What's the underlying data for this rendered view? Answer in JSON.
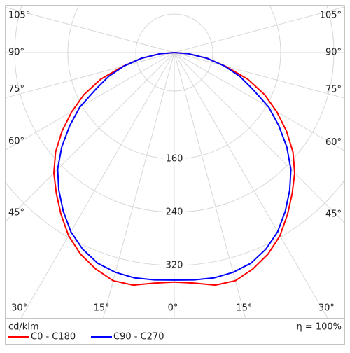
{
  "chart_data": {
    "type": "polar",
    "unit": "cd/klm",
    "efficiency": "η = 100%",
    "angles": [
      0,
      5,
      10,
      15,
      20,
      25,
      30,
      35,
      40,
      45,
      50,
      55,
      60,
      65,
      70,
      75,
      80,
      85,
      90
    ],
    "series": [
      {
        "name": "C0 - C180",
        "color": "#ff0000",
        "values": [
          345,
          348,
          355,
          355,
          346,
          334,
          318,
          297,
          276,
          256,
          233,
          206,
          178,
          150,
          118,
          80,
          50,
          22,
          0
        ]
      },
      {
        "name": "C90 - C270",
        "color": "#0000ff",
        "values": [
          342,
          343,
          344,
          342,
          337,
          326,
          311,
          291,
          270,
          248,
          221,
          192,
          164,
          130,
          105,
          78,
          50,
          22,
          0
        ]
      }
    ],
    "rlim": [
      0,
      400
    ],
    "rticks": [
      160,
      240,
      320
    ],
    "angle_ticks": [
      {
        "value": -105,
        "label": "105°"
      },
      {
        "value": -90,
        "label": "90°"
      },
      {
        "value": -75,
        "label": "75°"
      },
      {
        "value": -60,
        "label": "60°"
      },
      {
        "value": -45,
        "label": "45°"
      },
      {
        "value": -30,
        "label": "30°"
      },
      {
        "value": -15,
        "label": "15°"
      },
      {
        "value": 0,
        "label": "0°"
      },
      {
        "value": 15,
        "label": "15°"
      },
      {
        "value": 30,
        "label": "30°"
      },
      {
        "value": 45,
        "label": "45°"
      },
      {
        "value": 60,
        "label": "60°"
      },
      {
        "value": 75,
        "label": "75°"
      },
      {
        "value": 90,
        "label": "90°"
      },
      {
        "value": 105,
        "label": "105°"
      }
    ]
  }
}
